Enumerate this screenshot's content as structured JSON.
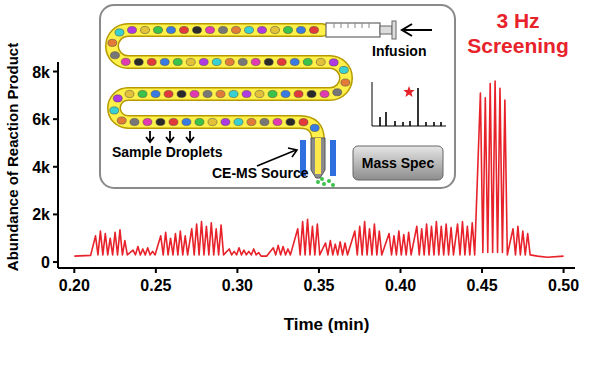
{
  "chart_data": {
    "type": "line",
    "x_label": "Time (min)",
    "y_label": "Abundance of Reaction Product",
    "annotation": "3 Hz Screening",
    "inset": {
      "infusion": "Infusion",
      "droplets": "Sample Droplets",
      "source": "CE-MS Source",
      "detector": "Mass Spec"
    },
    "color": "#e8222a",
    "grid": false,
    "xlim": [
      0.19,
      0.507
    ],
    "ylim": [
      -250,
      8400
    ],
    "xticks": [
      {
        "value": 0.2,
        "label": "0.20"
      },
      {
        "value": 0.25,
        "label": "0.25"
      },
      {
        "value": 0.3,
        "label": "0.30"
      },
      {
        "value": 0.35,
        "label": "0.35"
      },
      {
        "value": 0.4,
        "label": "0.40"
      },
      {
        "value": 0.45,
        "label": "0.45"
      },
      {
        "value": 0.5,
        "label": "0.50"
      }
    ],
    "yticks": [
      0,
      {
        "value": 2000,
        "label": "2k"
      },
      {
        "value": 4000,
        "label": "4k"
      },
      {
        "value": 6000,
        "label": "6k"
      },
      {
        "value": 8000,
        "label": "8k"
      }
    ],
    "x": [
      0.2,
      0.21,
      0.213,
      0.2145,
      0.216,
      0.2175,
      0.219,
      0.2205,
      0.222,
      0.2235,
      0.225,
      0.2265,
      0.228,
      0.2295,
      0.231,
      0.2325,
      0.236,
      0.2375,
      0.239,
      0.2405,
      0.242,
      0.2435,
      0.245,
      0.2465,
      0.248,
      0.2495,
      0.253,
      0.2545,
      0.256,
      0.2575,
      0.259,
      0.2605,
      0.262,
      0.2635,
      0.265,
      0.2665,
      0.268,
      0.2695,
      0.272,
      0.2735,
      0.275,
      0.2765,
      0.278,
      0.2795,
      0.281,
      0.2825,
      0.284,
      0.2855,
      0.287,
      0.2885,
      0.29,
      0.2915,
      0.295,
      0.2965,
      0.298,
      0.2995,
      0.301,
      0.3025,
      0.304,
      0.3055,
      0.307,
      0.3085,
      0.31,
      0.3115,
      0.313,
      0.3145,
      0.318,
      0.322,
      0.3235,
      0.325,
      0.3265,
      0.328,
      0.3295,
      0.331,
      0.3325,
      0.337,
      0.3385,
      0.34,
      0.3415,
      0.343,
      0.3445,
      0.346,
      0.3475,
      0.349,
      0.3505,
      0.354,
      0.3555,
      0.357,
      0.3585,
      0.36,
      0.3615,
      0.363,
      0.3645,
      0.366,
      0.3675,
      0.372,
      0.3735,
      0.375,
      0.3765,
      0.378,
      0.3795,
      0.381,
      0.3825,
      0.384,
      0.3855,
      0.387,
      0.3885,
      0.393,
      0.3945,
      0.396,
      0.3975,
      0.399,
      0.4005,
      0.402,
      0.4035,
      0.405,
      0.4065,
      0.41,
      0.4115,
      0.413,
      0.4145,
      0.416,
      0.4175,
      0.419,
      0.4205,
      0.422,
      0.4235,
      0.425,
      0.4265,
      0.428,
      0.4295,
      0.431,
      0.4325,
      0.435,
      0.4365,
      0.438,
      0.4395,
      0.441,
      0.4425,
      0.444,
      0.4455,
      0.449,
      0.4505,
      0.452,
      0.4535,
      0.455,
      0.4565,
      0.458,
      0.4595,
      0.461,
      0.4625,
      0.464,
      0.4655,
      0.469,
      0.4705,
      0.472,
      0.4735,
      0.475,
      0.4765,
      0.478,
      0.4795,
      0.484,
      0.49,
      0.5
    ],
    "values": [
      250,
      280,
      1100,
      300,
      1300,
      300,
      1200,
      300,
      1000,
      300,
      1250,
      300,
      1350,
      300,
      900,
      300,
      500,
      300,
      650,
      300,
      550,
      300,
      600,
      300,
      450,
      300,
      1100,
      300,
      1250,
      300,
      1000,
      300,
      1200,
      300,
      1300,
      300,
      1100,
      300,
      1400,
      300,
      1600,
      300,
      1700,
      300,
      1500,
      300,
      1650,
      300,
      1400,
      300,
      1550,
      300,
      550,
      300,
      450,
      300,
      600,
      300,
      500,
      300,
      450,
      300,
      550,
      300,
      400,
      250,
      250,
      600,
      300,
      700,
      300,
      650,
      300,
      550,
      300,
      1400,
      300,
      1700,
      300,
      1800,
      300,
      1500,
      300,
      1600,
      300,
      800,
      300,
      900,
      300,
      750,
      300,
      850,
      300,
      800,
      300,
      1300,
      300,
      1500,
      300,
      1700,
      300,
      1400,
      300,
      1600,
      300,
      1300,
      300,
      1200,
      300,
      1100,
      300,
      1300,
      300,
      1150,
      300,
      1250,
      300,
      1500,
      300,
      1400,
      300,
      1600,
      300,
      1500,
      300,
      1700,
      300,
      1500,
      300,
      1600,
      300,
      1450,
      300,
      1600,
      300,
      1700,
      300,
      1500,
      300,
      1650,
      300,
      7100,
      400,
      6900,
      400,
      7500,
      400,
      7600,
      400,
      7300,
      400,
      6800,
      300,
      1400,
      300,
      1500,
      300,
      1300,
      300,
      1200,
      300,
      250,
      200,
      250
    ]
  }
}
